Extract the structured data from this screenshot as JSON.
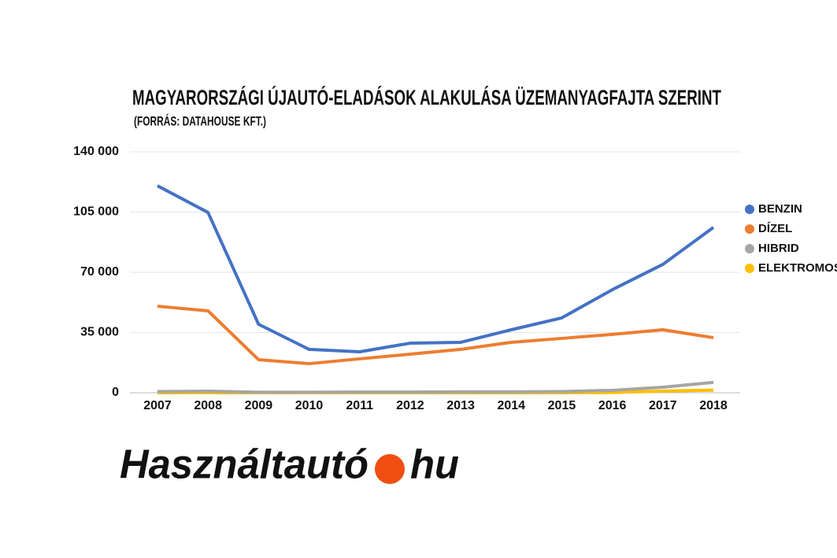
{
  "chart_data": {
    "type": "line",
    "title": "MAGYARORSZÁGI ÚJAUTÓ-ELADÁSOK ALAKULÁSA ÜZEMANYAGFAJTA SZERINT",
    "subtitle": "(FORRÁS: DATAHOUSE KFT.)",
    "categories": [
      "2007",
      "2008",
      "2009",
      "2010",
      "2011",
      "2012",
      "2013",
      "2014",
      "2015",
      "2016",
      "2017",
      "2018"
    ],
    "series": [
      {
        "name": "BENZIN",
        "color": "#4472c4",
        "values": [
          120300,
          104800,
          39800,
          25200,
          23800,
          28800,
          29300,
          36600,
          43500,
          59900,
          74600,
          96100
        ]
      },
      {
        "name": "DÍZEL",
        "color": "#ed7d31",
        "values": [
          50300,
          47600,
          19200,
          16900,
          19700,
          22400,
          25200,
          29300,
          31600,
          33900,
          36600,
          32000
        ]
      },
      {
        "name": "HIBRID",
        "color": "#a5a5a5",
        "values": [
          700,
          900,
          300,
          300,
          400,
          400,
          500,
          500,
          700,
          1400,
          3200,
          6000
        ]
      },
      {
        "name": "ELEKTROMOS",
        "color": "#ffc000",
        "values": [
          0,
          0,
          0,
          0,
          0,
          0,
          0,
          0,
          0,
          100,
          1000,
          1500
        ]
      }
    ],
    "ylim": [
      0,
      140000
    ],
    "yticks": [
      0,
      {
        "value": 35000,
        "label": "35 000"
      },
      {
        "value": 70000,
        "label": "70 000"
      },
      {
        "value": 105000,
        "label": "105 000"
      },
      {
        "value": 140000,
        "label": "140 000"
      }
    ],
    "grid": true,
    "legend": "right"
  },
  "logo": [
    "Használtautó",
    "hu"
  ]
}
